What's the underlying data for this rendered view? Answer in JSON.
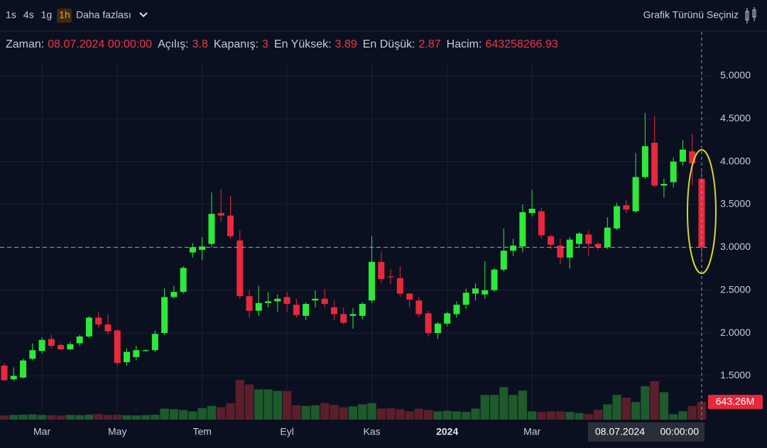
{
  "header": {
    "intervals": [
      "1s",
      "4s",
      "1g",
      "1h"
    ],
    "active_interval": "1h",
    "more": "Daha fazlası",
    "chart_type": "Grafik Türünü Seçiniz"
  },
  "info": [
    {
      "label": "Zaman:",
      "value": "08.07.2024 00:00:00"
    },
    {
      "label": "Açılış:",
      "value": 3.8
    },
    {
      "label": "Kapanış:",
      "value": 3
    },
    {
      "label": "En Yüksek:",
      "value": 3.89
    },
    {
      "label": "En Düşük:",
      "value": 2.87
    },
    {
      "label": "Hacim:",
      "value": 643258266.93
    }
  ],
  "chart_data": {
    "type": "candlestick",
    "categories": [
      null,
      null,
      null,
      null,
      "Mar",
      null,
      null,
      null,
      null,
      null,
      null,
      null,
      "May",
      null,
      null,
      null,
      null,
      null,
      null,
      null,
      null,
      "Tem",
      null,
      null,
      null,
      null,
      null,
      null,
      null,
      null,
      "Eyl",
      null,
      null,
      null,
      null,
      null,
      null,
      null,
      null,
      "Kas",
      null,
      null,
      null,
      null,
      null,
      null,
      null,
      "2024",
      null,
      null,
      null,
      null,
      null,
      null,
      null,
      null,
      "Mar",
      null,
      null,
      null,
      null,
      null,
      null,
      null,
      null,
      null,
      null,
      null,
      null,
      null,
      null,
      null,
      null,
      null,
      null
    ],
    "open": [
      1.62,
      1.46,
      1.48,
      1.7,
      1.79,
      1.93,
      1.86,
      1.81,
      1.88,
      1.96,
      2.18,
      2.1,
      2.03,
      1.66,
      1.72,
      1.79,
      1.8,
      2.0,
      2.42,
      2.48,
      2.94,
      2.97,
      3.04,
      3.4,
      3.37,
      3.08,
      2.43,
      2.26,
      2.35,
      2.37,
      2.42,
      2.33,
      2.2,
      2.38,
      2.4,
      2.3,
      2.22,
      2.2,
      2.2,
      2.38,
      2.83,
      2.66,
      2.64,
      2.46,
      2.38,
      2.23,
      2.0,
      2.11,
      2.22,
      2.33,
      2.46,
      2.45,
      2.5,
      2.74,
      2.96,
      3.01,
      3.4,
      3.42,
      3.13,
      3.02,
      2.88,
      3.04,
      3.15,
      3.04,
      3.0,
      3.22,
      3.49,
      3.42,
      3.82,
      4.22,
      3.72,
      3.76,
      4.0,
      4.12,
      3.8
    ],
    "high": [
      1.65,
      1.6,
      1.7,
      1.88,
      1.95,
      1.98,
      1.88,
      1.9,
      1.98,
      2.2,
      2.25,
      2.22,
      2.04,
      1.82,
      1.85,
      1.81,
      2.03,
      2.52,
      2.55,
      2.78,
      3.05,
      3.12,
      3.64,
      3.68,
      3.6,
      3.2,
      2.5,
      2.55,
      2.48,
      2.45,
      2.48,
      2.4,
      2.36,
      2.5,
      2.51,
      2.38,
      2.3,
      2.29,
      2.36,
      3.13,
      2.95,
      2.75,
      2.78,
      2.47,
      2.42,
      2.26,
      2.13,
      2.25,
      2.37,
      2.52,
      2.58,
      2.84,
      2.76,
      3.22,
      3.1,
      3.5,
      3.67,
      3.46,
      3.15,
      3.1,
      3.12,
      3.18,
      3.2,
      3.06,
      3.35,
      3.52,
      3.55,
      4.1,
      4.57,
      4.53,
      3.8,
      4.05,
      4.25,
      4.32,
      3.89
    ],
    "low": [
      1.44,
      1.44,
      1.47,
      1.68,
      1.76,
      1.82,
      1.8,
      1.8,
      1.85,
      1.94,
      2.06,
      1.98,
      1.62,
      1.62,
      1.68,
      1.78,
      1.78,
      1.98,
      2.4,
      2.46,
      2.88,
      2.85,
      3.0,
      3.3,
      3.1,
      2.4,
      2.18,
      2.2,
      2.3,
      2.25,
      2.25,
      2.18,
      2.15,
      2.3,
      2.3,
      2.15,
      2.1,
      2.05,
      2.16,
      2.35,
      2.58,
      2.57,
      2.42,
      2.3,
      2.18,
      1.96,
      1.93,
      2.08,
      2.18,
      2.28,
      2.38,
      2.4,
      2.48,
      2.72,
      2.9,
      2.94,
      3.36,
      3.1,
      2.98,
      2.8,
      2.75,
      3.0,
      2.9,
      2.97,
      2.98,
      3.2,
      3.4,
      3.4,
      3.8,
      3.7,
      3.58,
      3.7,
      3.95,
      3.72,
      2.87
    ],
    "close": [
      1.45,
      1.5,
      1.68,
      1.8,
      1.92,
      1.85,
      1.81,
      1.87,
      1.96,
      2.18,
      2.1,
      2.02,
      1.65,
      1.78,
      1.8,
      1.8,
      1.99,
      2.42,
      2.48,
      2.76,
      3.0,
      3.01,
      3.39,
      3.37,
      3.13,
      2.43,
      2.26,
      2.35,
      2.37,
      2.4,
      2.34,
      2.21,
      2.34,
      2.4,
      2.34,
      2.22,
      2.12,
      2.22,
      2.34,
      2.83,
      2.63,
      2.65,
      2.46,
      2.39,
      2.22,
      2.0,
      2.11,
      2.23,
      2.33,
      2.47,
      2.52,
      2.5,
      2.74,
      2.96,
      3.02,
      3.41,
      3.45,
      3.14,
      3.03,
      2.88,
      3.09,
      3.16,
      3.04,
      3.0,
      3.23,
      3.48,
      3.44,
      3.82,
      4.18,
      3.72,
      3.74,
      4.0,
      4.14,
      3.98,
      3
    ],
    "volume": [
      150,
      170,
      180,
      190,
      170,
      160,
      150,
      170,
      160,
      180,
      200,
      170,
      180,
      160,
      150,
      160,
      180,
      400,
      380,
      350,
      300,
      420,
      500,
      450,
      600,
      1450,
      1280,
      1100,
      1100,
      1050,
      1050,
      520,
      500,
      520,
      600,
      540,
      450,
      480,
      560,
      600,
      400,
      420,
      380,
      300,
      400,
      350,
      300,
      320,
      300,
      280,
      400,
      900,
      900,
      1180,
      900,
      1060,
      300,
      280,
      300,
      300,
      280,
      240,
      200,
      360,
      560,
      900,
      800,
      640,
      1220,
      1400,
      1000,
      200,
      300,
      500,
      643.26
    ],
    "last_volume_label": "643.26M",
    "up_color": "#2ee83a",
    "down_color": "#e8283c",
    "up_volume_color": "#1e5a2c",
    "down_volume_color": "#5a1f2b",
    "ylim": [
      0.99,
      5.14
    ],
    "yticks": [
      {
        "value": 1.5,
        "label": "1.5000"
      },
      {
        "value": 2,
        "label": "2.0000"
      },
      {
        "value": 2.5,
        "label": "2.5000"
      },
      {
        "value": 3,
        "label": "3.0000"
      },
      {
        "value": 3.5,
        "label": "3.5000"
      },
      {
        "value": 4,
        "label": "4.0000"
      },
      {
        "value": 4.5,
        "label": "4.5000"
      },
      {
        "value": 5,
        "label": "5.0000"
      }
    ],
    "grid": true,
    "crosshair": {
      "date": "08.07.2024",
      "time": "00:00:00"
    }
  }
}
